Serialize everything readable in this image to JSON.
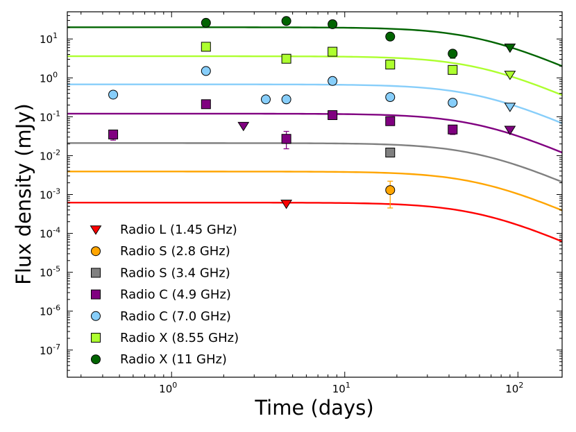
{
  "chart_data": {
    "type": "scatter",
    "title": "",
    "xlabel": "Time (days)",
    "ylabel": "Flux density (mJy)",
    "xscale": "log",
    "yscale": "log",
    "xlim": [
      0.25,
      180
    ],
    "ylim": [
      2e-08,
      50
    ],
    "x_ticks": [
      {
        "value": 1,
        "base": "10",
        "exp": "0"
      },
      {
        "value": 10,
        "base": "10",
        "exp": "1"
      },
      {
        "value": 100,
        "base": "10",
        "exp": "2"
      }
    ],
    "y_ticks": [
      {
        "value": 1e-07,
        "base": "10",
        "exp": "-7"
      },
      {
        "value": 1e-06,
        "base": "10",
        "exp": "-6"
      },
      {
        "value": 1e-05,
        "base": "10",
        "exp": "-5"
      },
      {
        "value": 0.0001,
        "base": "10",
        "exp": "-4"
      },
      {
        "value": 0.001,
        "base": "10",
        "exp": "-3"
      },
      {
        "value": 0.01,
        "base": "10",
        "exp": "-2"
      },
      {
        "value": 0.1,
        "base": "10",
        "exp": "-1"
      },
      {
        "value": 1,
        "base": "10",
        "exp": "0"
      },
      {
        "value": 10,
        "base": "10",
        "exp": "1"
      }
    ],
    "legend_position": "bottom-left",
    "series": [
      {
        "name": "Radio L (1.45 GHz)",
        "color": "#ff0000",
        "marker": "triangle-down",
        "model_plateau": 0.00062,
        "model_break": 60,
        "points": [
          {
            "x": 4.6,
            "y": 0.00058,
            "limit": true
          }
        ]
      },
      {
        "name": "Radio S (2.8 GHz)",
        "color": "#ffa500",
        "marker": "circle",
        "model_plateau": 0.0039,
        "model_break": 60,
        "points": [
          {
            "x": 18.3,
            "y": 0.0013,
            "err_lo": 0.00045,
            "err_hi": 0.0022
          }
        ]
      },
      {
        "name": "Radio S (3.4 GHz)",
        "color": "#808080",
        "marker": "square",
        "model_plateau": 0.021,
        "model_break": 60,
        "points": [
          {
            "x": 18.3,
            "y": 0.012,
            "limit": false
          }
        ]
      },
      {
        "name": "Radio C (4.9 GHz)",
        "color": "#800080",
        "marker": "square",
        "model_plateau": 0.12,
        "model_break": 60,
        "points": [
          {
            "x": 0.46,
            "y": 0.035,
            "err_lo": 0.025,
            "err_hi": 0.045
          },
          {
            "x": 1.58,
            "y": 0.21
          },
          {
            "x": 2.6,
            "y": 0.058,
            "limit": true
          },
          {
            "x": 4.6,
            "y": 0.027,
            "err_lo": 0.015,
            "err_hi": 0.042
          },
          {
            "x": 8.5,
            "y": 0.11
          },
          {
            "x": 18.3,
            "y": 0.077
          },
          {
            "x": 42,
            "y": 0.047,
            "err_lo": 0.035,
            "err_hi": 0.058
          },
          {
            "x": 90,
            "y": 0.046,
            "limit": true
          }
        ]
      },
      {
        "name": "Radio C (7.0 GHz)",
        "color": "#87cefa",
        "marker": "circle",
        "model_plateau": 0.68,
        "model_break": 60,
        "points": [
          {
            "x": 0.46,
            "y": 0.37
          },
          {
            "x": 1.58,
            "y": 1.5
          },
          {
            "x": 3.5,
            "y": 0.28
          },
          {
            "x": 4.6,
            "y": 0.28
          },
          {
            "x": 8.5,
            "y": 0.83
          },
          {
            "x": 18.3,
            "y": 0.32
          },
          {
            "x": 42,
            "y": 0.23
          },
          {
            "x": 90,
            "y": 0.18,
            "limit": true
          }
        ]
      },
      {
        "name": "Radio X (8.55 GHz)",
        "color": "#adff2f",
        "marker": "square",
        "model_plateau": 3.6,
        "model_break": 60,
        "points": [
          {
            "x": 1.58,
            "y": 6.3
          },
          {
            "x": 4.6,
            "y": 3.1
          },
          {
            "x": 8.5,
            "y": 4.7
          },
          {
            "x": 18.3,
            "y": 2.2
          },
          {
            "x": 42,
            "y": 1.6
          },
          {
            "x": 90,
            "y": 1.2,
            "limit": true
          }
        ]
      },
      {
        "name": "Radio X (11 GHz)",
        "color": "#006400",
        "marker": "circle",
        "model_plateau": 20,
        "model_break": 60,
        "points": [
          {
            "x": 1.58,
            "y": 26
          },
          {
            "x": 4.6,
            "y": 29
          },
          {
            "x": 8.5,
            "y": 24
          },
          {
            "x": 18.3,
            "y": 11.5
          },
          {
            "x": 42,
            "y": 4.2,
            "err_lo": 3.2,
            "err_hi": 5.0
          },
          {
            "x": 90,
            "y": 6.0,
            "limit": true
          }
        ]
      }
    ]
  }
}
